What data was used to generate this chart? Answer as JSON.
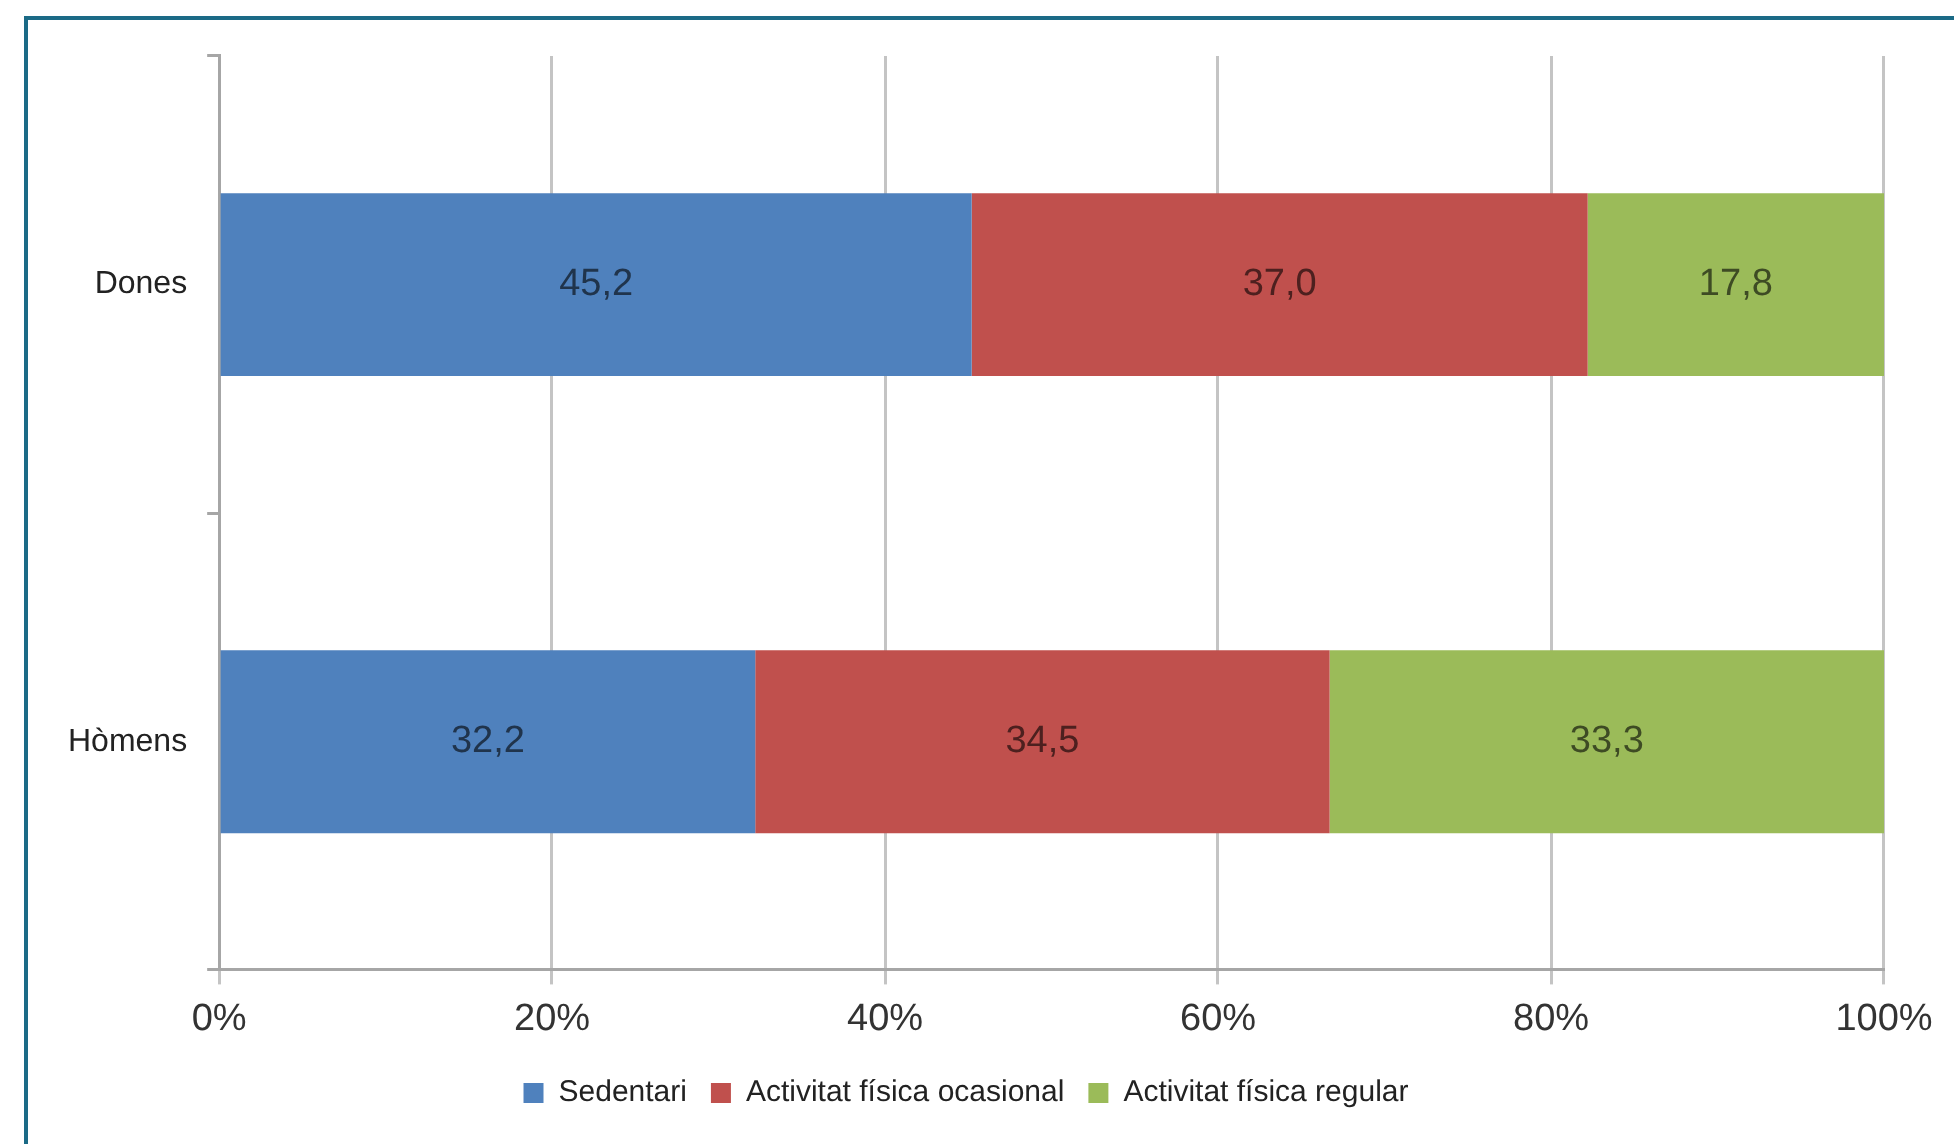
{
  "chart_data": {
    "type": "bar",
    "orientation": "horizontal",
    "stacked": true,
    "categories": [
      "Dones",
      "Hòmens"
    ],
    "series": [
      {
        "name": "Sedentari",
        "color": "#4f81bd",
        "values": [
          45.2,
          32.2
        ],
        "value_labels": [
          "45,2",
          "32,2"
        ]
      },
      {
        "name": "Activitat física ocasional",
        "color": "#c0504d",
        "values": [
          37.0,
          34.5
        ],
        "value_labels": [
          "37,0",
          "34,5"
        ]
      },
      {
        "name": "Activitat física regular",
        "color": "#9bbb59",
        "values": [
          17.8,
          33.3
        ],
        "value_labels": [
          "17,8",
          "33,3"
        ]
      }
    ],
    "xlim": [
      0,
      100
    ],
    "xticks": [
      {
        "value": 0,
        "label": "0%"
      },
      {
        "value": 20,
        "label": "20%"
      },
      {
        "value": 40,
        "label": "40%"
      },
      {
        "value": 60,
        "label": "60%"
      },
      {
        "value": 80,
        "label": "80%"
      },
      {
        "value": 100,
        "label": "100%"
      }
    ],
    "grid": "x",
    "legend": "bottom"
  }
}
